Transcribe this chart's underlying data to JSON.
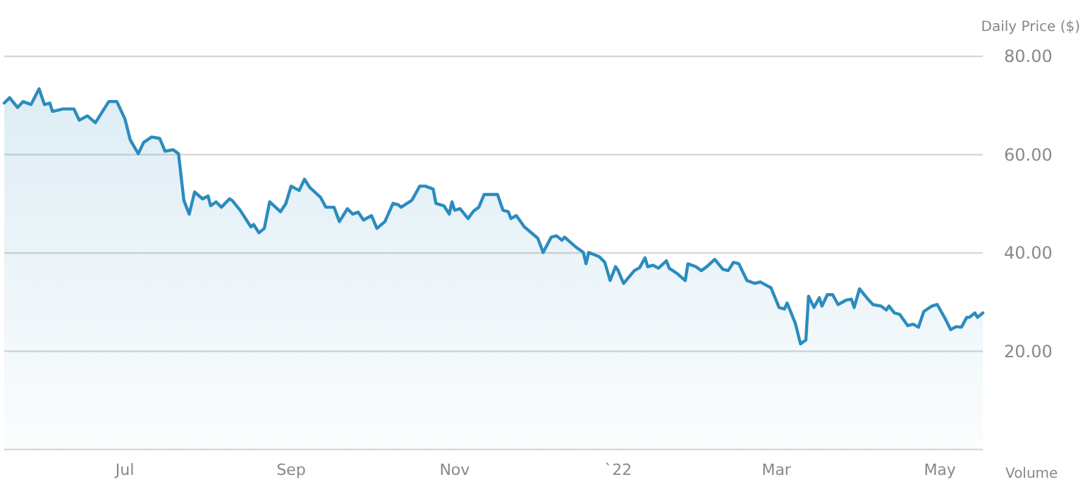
{
  "chart_data": {
    "type": "area",
    "ylabel": "Daily Price ($)",
    "annotations": [
      "Volume"
    ],
    "grid": "y",
    "marker": "none",
    "line_style": "solid",
    "xlim": [
      "2021-05-17",
      "2022-05-17"
    ],
    "xticks": [
      {
        "value": "2021-07-01",
        "label": "Jul"
      },
      {
        "value": "2021-09-01",
        "label": "Sep"
      },
      {
        "value": "2021-11-01",
        "label": "Nov"
      },
      {
        "value": "2022-01-01",
        "label": "`22"
      },
      {
        "value": "2022-03-01",
        "label": "Mar"
      },
      {
        "value": "2022-05-01",
        "label": "May"
      }
    ],
    "ylim": [
      0,
      80
    ],
    "yticks": [
      {
        "value": 20,
        "label": "20.00"
      },
      {
        "value": 40,
        "label": "40.00"
      },
      {
        "value": 60,
        "label": "60.00"
      },
      {
        "value": 80,
        "label": "80.00"
      }
    ],
    "x": [
      "2021-05-17",
      "2021-05-19",
      "2021-05-22",
      "2021-05-24",
      "2021-05-27",
      "2021-05-30",
      "2021-06-01",
      "2021-06-03",
      "2021-06-04",
      "2021-06-08",
      "2021-06-12",
      "2021-06-14",
      "2021-06-17",
      "2021-06-20",
      "2021-06-25",
      "2021-06-28",
      "2021-07-01",
      "2021-07-03",
      "2021-07-06",
      "2021-07-08",
      "2021-07-11",
      "2021-07-14",
      "2021-07-16",
      "2021-07-19",
      "2021-07-21",
      "2021-07-23",
      "2021-07-25",
      "2021-07-27",
      "2021-07-30",
      "2021-08-01",
      "2021-08-02",
      "2021-08-04",
      "2021-08-06",
      "2021-08-09",
      "2021-08-10",
      "2021-08-13",
      "2021-08-17",
      "2021-08-18",
      "2021-08-20",
      "2021-08-22",
      "2021-08-24",
      "2021-08-28",
      "2021-08-30",
      "2021-09-01",
      "2021-09-04",
      "2021-09-06",
      "2021-09-08",
      "2021-09-12",
      "2021-09-14",
      "2021-09-17",
      "2021-09-19",
      "2021-09-22",
      "2021-09-24",
      "2021-09-26",
      "2021-09-28",
      "2021-10-01",
      "2021-10-03",
      "2021-10-06",
      "2021-10-09",
      "2021-10-11",
      "2021-10-12",
      "2021-10-16",
      "2021-10-19",
      "2021-10-21",
      "2021-10-24",
      "2021-10-25",
      "2021-10-28",
      "2021-10-30",
      "2021-10-31",
      "2021-11-01",
      "2021-11-03",
      "2021-11-06",
      "2021-11-08",
      "2021-11-10",
      "2021-11-12",
      "2021-11-14",
      "2021-11-17",
      "2021-11-19",
      "2021-11-21",
      "2021-11-22",
      "2021-11-24",
      "2021-11-27",
      "2021-12-02",
      "2021-12-04",
      "2021-12-07",
      "2021-12-09",
      "2021-12-11",
      "2021-12-12",
      "2021-12-16",
      "2021-12-19",
      "2021-12-20",
      "2021-12-21",
      "2021-12-25",
      "2021-12-27",
      "2021-12-29",
      "2021-12-31",
      "2022-01-01",
      "2022-01-03",
      "2022-01-07",
      "2022-01-09",
      "2022-01-11",
      "2022-01-12",
      "2022-01-14",
      "2022-01-16",
      "2022-01-19",
      "2022-01-20",
      "2022-01-23",
      "2022-01-26",
      "2022-01-27",
      "2022-01-30",
      "2022-02-01",
      "2022-02-03",
      "2022-02-06",
      "2022-02-09",
      "2022-02-11",
      "2022-02-13",
      "2022-02-15",
      "2022-02-18",
      "2022-02-21",
      "2022-02-23",
      "2022-02-25",
      "2022-02-27",
      "2022-03-02",
      "2022-03-04",
      "2022-03-05",
      "2022-03-08",
      "2022-03-10",
      "2022-03-12",
      "2022-03-13",
      "2022-03-15",
      "2022-03-17",
      "2022-03-18",
      "2022-03-20",
      "2022-03-22",
      "2022-03-24",
      "2022-03-27",
      "2022-03-29",
      "2022-03-30",
      "2022-04-01",
      "2022-04-04",
      "2022-04-06",
      "2022-04-09",
      "2022-04-11",
      "2022-04-12",
      "2022-04-14",
      "2022-04-16",
      "2022-04-19",
      "2022-04-21",
      "2022-04-23",
      "2022-04-25",
      "2022-04-28",
      "2022-04-30",
      "2022-05-03",
      "2022-05-05",
      "2022-05-07",
      "2022-05-09",
      "2022-05-11",
      "2022-05-12",
      "2022-05-14",
      "2022-05-15",
      "2022-05-17"
    ],
    "series": [
      {
        "color": "#2b8cbe",
        "values": [
          70.5,
          71.6,
          69.6,
          70.8,
          70.2,
          73.4,
          70.2,
          70.5,
          68.8,
          69.3,
          69.3,
          67,
          67.9,
          66.5,
          70.8,
          70.8,
          67.3,
          63,
          60.2,
          62.5,
          63.6,
          63.3,
          60.7,
          61,
          60.2,
          50.7,
          47.9,
          52.4,
          51,
          51.6,
          49.6,
          50.4,
          49.3,
          51,
          50.7,
          48.7,
          45.3,
          45.8,
          44.1,
          45,
          50.4,
          48.4,
          50,
          53.6,
          52.7,
          55,
          53.3,
          51.3,
          49.3,
          49.3,
          46.4,
          49,
          47.9,
          48.3,
          46.7,
          47.6,
          45,
          46.4,
          50.1,
          49.8,
          49.3,
          50.7,
          53.6,
          53.6,
          53,
          50.1,
          49.6,
          47.9,
          50.4,
          48.7,
          49,
          47,
          48.5,
          49.3,
          51.9,
          51.9,
          51.9,
          48.7,
          48.4,
          47,
          47.6,
          45.3,
          43,
          40.1,
          43.2,
          43.5,
          42.6,
          43.2,
          41.3,
          40.1,
          37.8,
          40.1,
          39.2,
          38.1,
          34.4,
          37.2,
          36.4,
          33.8,
          36.4,
          37,
          39,
          37.2,
          37.5,
          36.9,
          38.4,
          36.9,
          35.8,
          34.4,
          37.8,
          37.2,
          36.4,
          37.2,
          38.7,
          36.7,
          36.4,
          38.1,
          37.8,
          34.4,
          33.8,
          34.1,
          33.5,
          32.9,
          28.9,
          28.6,
          29.8,
          25.8,
          21.5,
          22.3,
          31.2,
          28.9,
          30.9,
          29.2,
          31.5,
          31.5,
          29.5,
          30.4,
          30.6,
          28.9,
          32.7,
          30.7,
          29.5,
          29.2,
          28.4,
          29.2,
          27.8,
          27.5,
          25.2,
          25.5,
          24.9,
          28.1,
          29.2,
          29.5,
          26.6,
          24.4,
          25,
          24.9,
          26.9,
          26.9,
          27.8,
          26.9,
          27.8
        ]
      }
    ]
  }
}
